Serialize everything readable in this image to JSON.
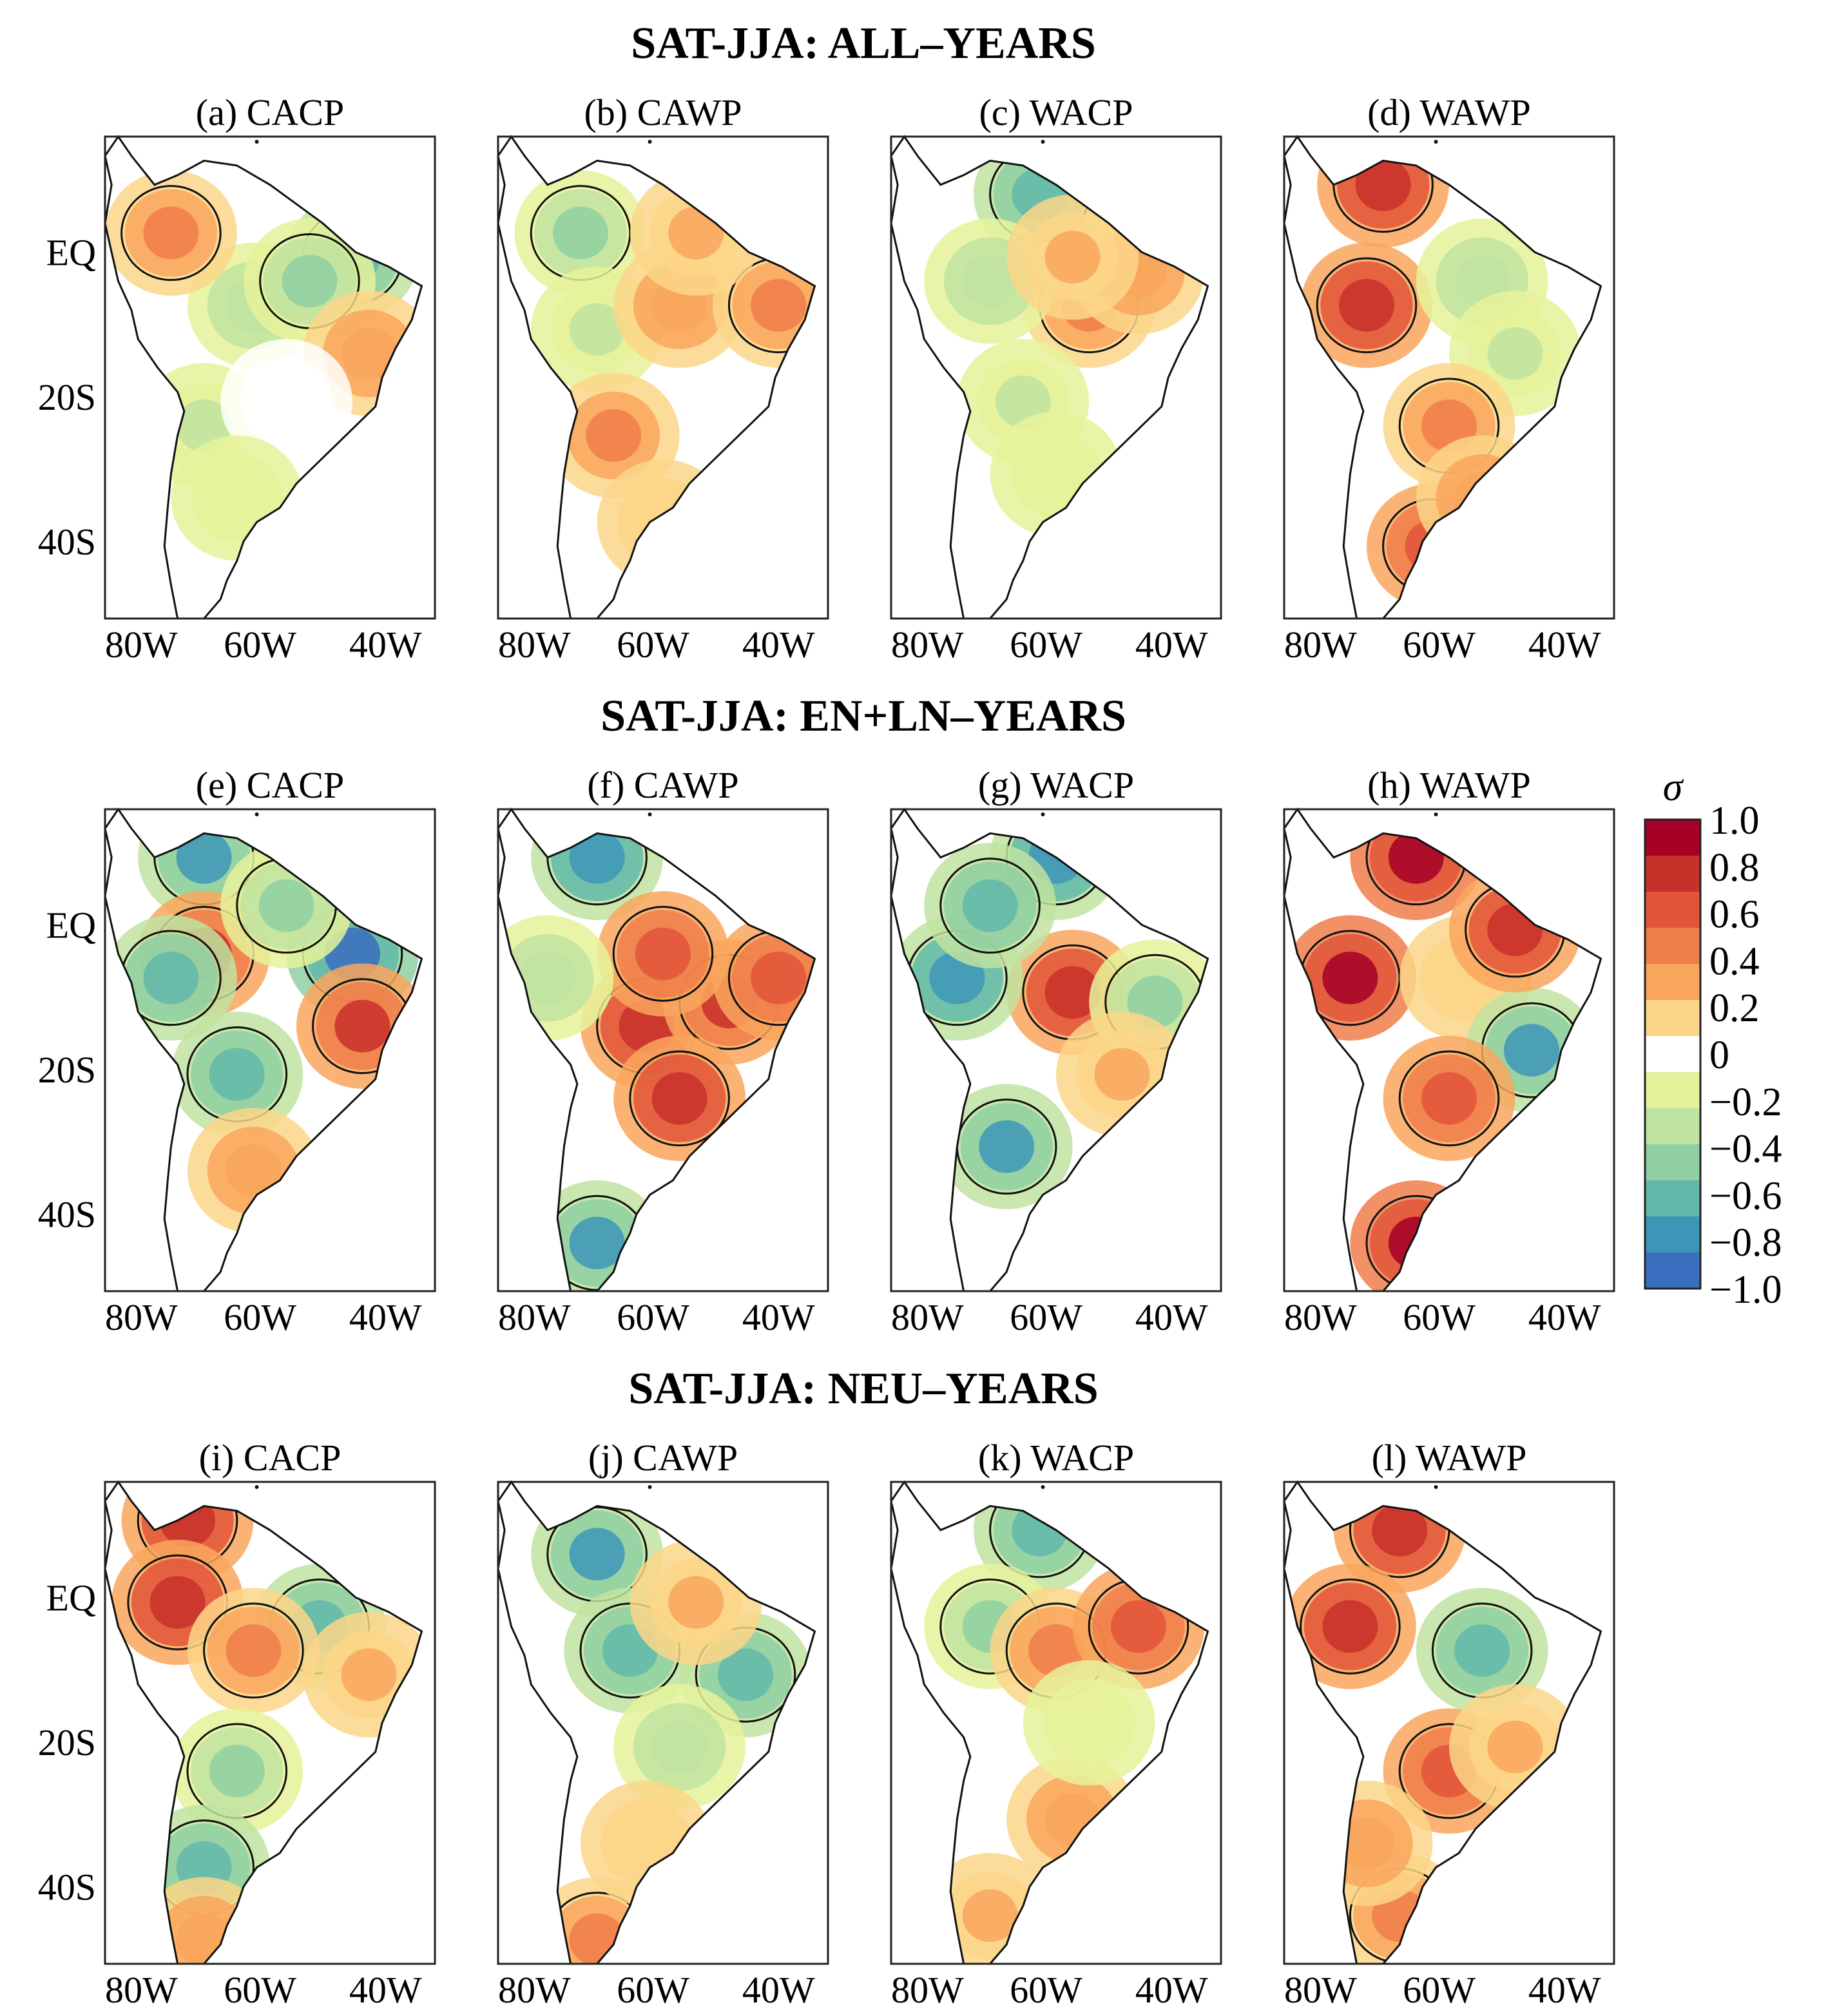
{
  "rows": [
    {
      "title": "SAT-JJA: ALL–YEARS",
      "panels": [
        {
          "label": "(a) CACP",
          "pattern": [
            [
              0.45,
              0.35,
              -0.4
            ],
            [
              0.3,
              0.6,
              -0.3
            ],
            [
              0.75,
              0.25,
              -0.6
            ],
            [
              0.62,
              0.3,
              -0.5
            ],
            [
              0.8,
              0.45,
              0.4
            ],
            [
              0.55,
              0.55,
              0.0
            ],
            [
              0.4,
              0.75,
              -0.2
            ],
            [
              0.2,
              0.2,
              0.5
            ]
          ]
        },
        {
          "label": "(b) CAWP",
          "pattern": [
            [
              0.25,
              0.2,
              -0.5
            ],
            [
              0.3,
              0.4,
              -0.3
            ],
            [
              0.55,
              0.35,
              0.4
            ],
            [
              0.85,
              0.35,
              0.5
            ],
            [
              0.35,
              0.62,
              0.45
            ],
            [
              0.5,
              0.8,
              0.2
            ],
            [
              0.6,
              0.2,
              0.3
            ]
          ]
        },
        {
          "label": "(c) WACP",
          "pattern": [
            [
              0.45,
              0.12,
              -0.6
            ],
            [
              0.6,
              0.35,
              0.5
            ],
            [
              0.3,
              0.3,
              -0.4
            ],
            [
              0.75,
              0.28,
              0.4
            ],
            [
              0.4,
              0.55,
              -0.3
            ],
            [
              0.5,
              0.7,
              -0.2
            ],
            [
              0.55,
              0.25,
              0.3
            ]
          ]
        },
        {
          "label": "(d) WAWP",
          "pattern": [
            [
              0.3,
              0.1,
              0.9
            ],
            [
              0.25,
              0.35,
              0.85
            ],
            [
              0.6,
              0.3,
              -0.4
            ],
            [
              0.7,
              0.45,
              -0.3
            ],
            [
              0.5,
              0.6,
              0.5
            ],
            [
              0.45,
              0.85,
              0.6
            ],
            [
              0.6,
              0.75,
              0.4
            ]
          ]
        }
      ]
    },
    {
      "title": "SAT-JJA: EN+LN–YEARS",
      "panels": [
        {
          "label": "(e) CACP",
          "pattern": [
            [
              0.3,
              0.1,
              -0.8
            ],
            [
              0.75,
              0.3,
              -1.0
            ],
            [
              0.3,
              0.3,
              0.8
            ],
            [
              0.78,
              0.45,
              0.8
            ],
            [
              0.4,
              0.55,
              -0.6
            ],
            [
              0.45,
              0.75,
              0.4
            ],
            [
              0.2,
              0.35,
              -0.7
            ],
            [
              0.55,
              0.2,
              -0.5
            ]
          ]
        },
        {
          "label": "(f) CAWP",
          "pattern": [
            [
              0.3,
              0.1,
              -0.9
            ],
            [
              0.45,
              0.45,
              0.9
            ],
            [
              0.7,
              0.4,
              0.8
            ],
            [
              0.5,
              0.3,
              0.6
            ],
            [
              0.55,
              0.6,
              0.85
            ],
            [
              0.3,
              0.9,
              -0.8
            ],
            [
              0.15,
              0.35,
              -0.4
            ],
            [
              0.85,
              0.35,
              0.7
            ]
          ]
        },
        {
          "label": "(g) WACP",
          "pattern": [
            [
              0.5,
              0.1,
              -0.9
            ],
            [
              0.55,
              0.38,
              0.9
            ],
            [
              0.2,
              0.35,
              -0.9
            ],
            [
              0.35,
              0.7,
              -0.8
            ],
            [
              0.8,
              0.4,
              -0.5
            ],
            [
              0.7,
              0.55,
              0.3
            ],
            [
              0.3,
              0.2,
              -0.6
            ]
          ]
        },
        {
          "label": "(h) WAWP",
          "pattern": [
            [
              0.4,
              0.1,
              1.0
            ],
            [
              0.2,
              0.35,
              1.0
            ],
            [
              0.55,
              0.35,
              0.2
            ],
            [
              0.75,
              0.5,
              -0.8
            ],
            [
              0.5,
              0.6,
              0.7
            ],
            [
              0.4,
              0.9,
              1.0
            ],
            [
              0.7,
              0.25,
              0.9
            ]
          ]
        }
      ]
    },
    {
      "title": "SAT-JJA: NEU–YEARS",
      "panels": [
        {
          "label": "(i) CACP",
          "pattern": [
            [
              0.25,
              0.08,
              0.9
            ],
            [
              0.22,
              0.25,
              0.85
            ],
            [
              0.65,
              0.3,
              -0.6
            ],
            [
              0.45,
              0.35,
              0.5
            ],
            [
              0.4,
              0.6,
              -0.5
            ],
            [
              0.3,
              0.8,
              -0.6
            ],
            [
              0.3,
              0.95,
              0.4
            ],
            [
              0.8,
              0.4,
              0.3
            ]
          ]
        },
        {
          "label": "(j) CAWP",
          "pattern": [
            [
              0.3,
              0.15,
              -0.8
            ],
            [
              0.4,
              0.35,
              -0.6
            ],
            [
              0.75,
              0.4,
              -0.6
            ],
            [
              0.55,
              0.55,
              -0.4
            ],
            [
              0.6,
              0.25,
              0.3
            ],
            [
              0.3,
              0.95,
              0.5
            ],
            [
              0.45,
              0.75,
              0.2
            ]
          ]
        },
        {
          "label": "(k) WACP",
          "pattern": [
            [
              0.45,
              0.1,
              -0.7
            ],
            [
              0.3,
              0.3,
              -0.5
            ],
            [
              0.5,
              0.35,
              0.5
            ],
            [
              0.75,
              0.3,
              0.6
            ],
            [
              0.55,
              0.7,
              0.4
            ],
            [
              0.3,
              0.9,
              0.3
            ],
            [
              0.6,
              0.5,
              -0.2
            ]
          ]
        },
        {
          "label": "(l) WAWP",
          "pattern": [
            [
              0.35,
              0.1,
              0.9
            ],
            [
              0.2,
              0.3,
              0.9
            ],
            [
              0.6,
              0.35,
              -0.6
            ],
            [
              0.5,
              0.6,
              0.6
            ],
            [
              0.35,
              0.9,
              0.5
            ],
            [
              0.7,
              0.55,
              0.3
            ],
            [
              0.25,
              0.75,
              0.4
            ]
          ]
        }
      ]
    }
  ],
  "axes": {
    "x_ticks": [
      "80W",
      "60W",
      "40W"
    ],
    "y_ticks": [
      "EQ",
      "20S",
      "40S"
    ]
  },
  "colorbar": {
    "symbol": "σ",
    "ticks": [
      "1.0",
      "0.8",
      "0.6",
      "0.4",
      "0.2",
      "0",
      "−0.2",
      "−0.4",
      "−0.6",
      "−0.8",
      "−1.0"
    ],
    "colors": [
      "#a50026",
      "#c8302a",
      "#e2553a",
      "#f07e4a",
      "#f9a65d",
      "#fcd688",
      "#ffffff",
      "#e6f29a",
      "#bfe3a0",
      "#8fcfa2",
      "#62b8a9",
      "#3d96b8",
      "#3a6fc0"
    ]
  }
}
